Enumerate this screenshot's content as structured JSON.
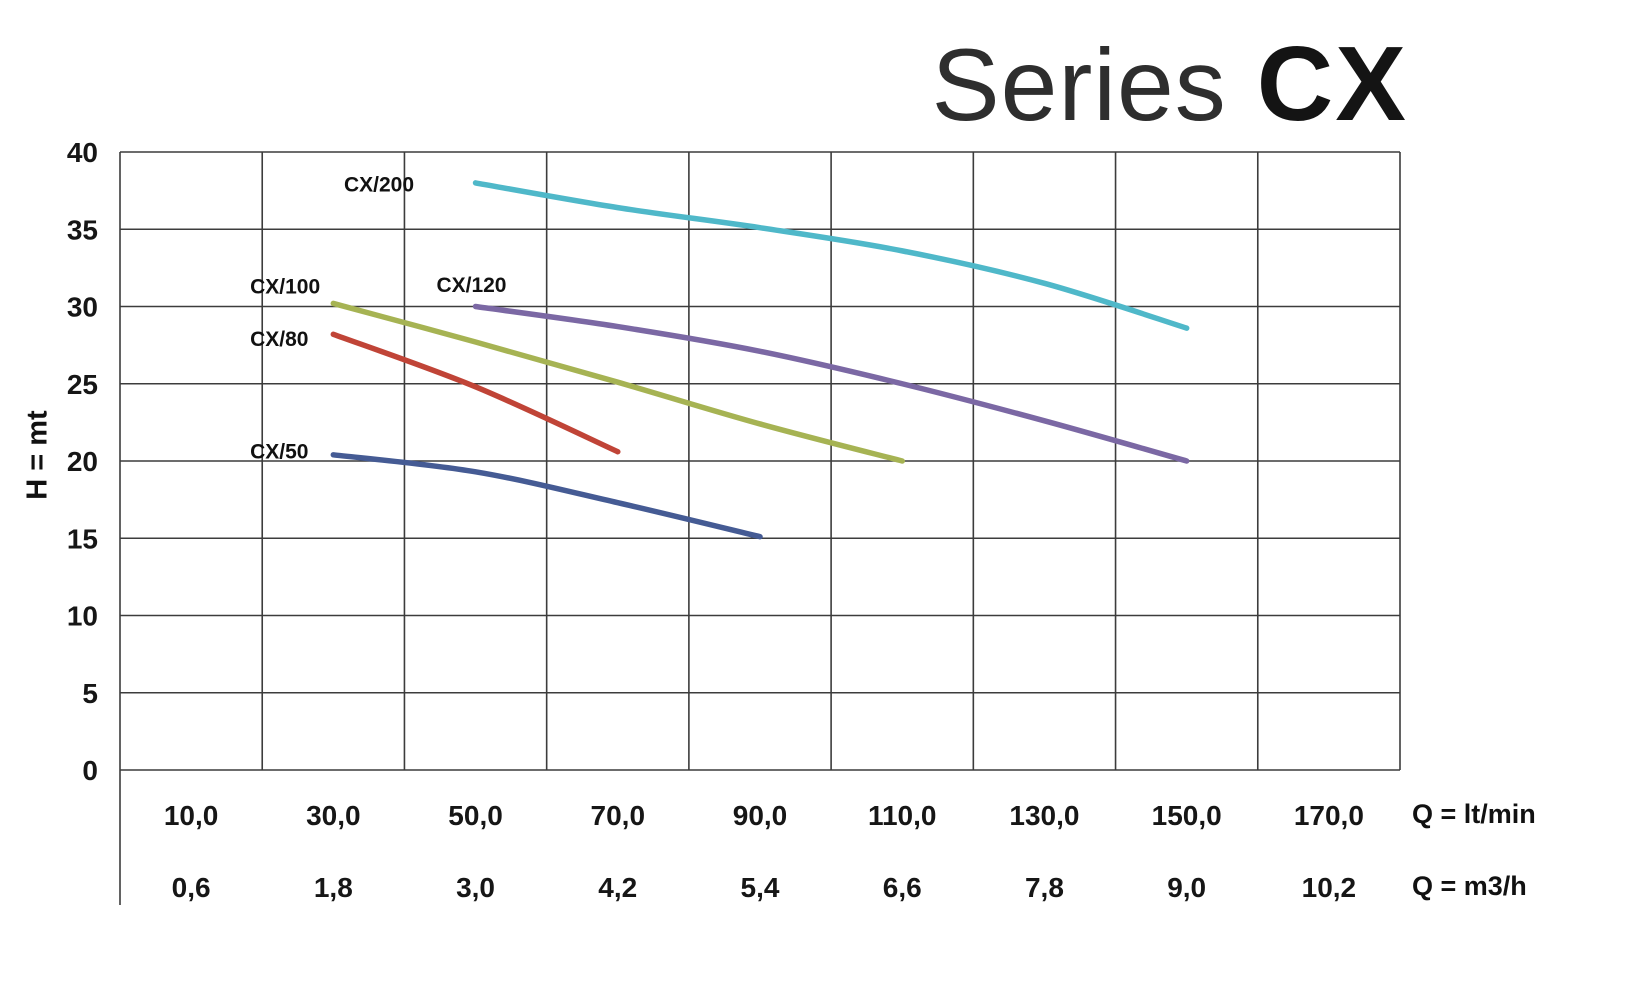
{
  "header": {
    "series_word": "Series",
    "model_word": "CX"
  },
  "chart_data": {
    "type": "line",
    "title": "Series CX",
    "ylabel": "H = mt",
    "xlabel_primary": "Q = lt/min",
    "xlabel_secondary": "Q = m3/h",
    "xlim": [
      0,
      180
    ],
    "ylim": [
      0,
      40
    ],
    "x_grid_step": 20,
    "y_grid_step": 5,
    "grid": true,
    "legend": "inline-labels",
    "y_ticks": [
      40,
      35,
      30,
      25,
      20,
      15,
      10,
      5,
      0
    ],
    "x_ticks_ltmin": [
      "10,0",
      "30,0",
      "50,0",
      "70,0",
      "90,0",
      "110,0",
      "130,0",
      "150,0",
      "170,0"
    ],
    "x_ticks_m3h": [
      "0,6",
      "1,8",
      "3,0",
      "4,2",
      "5,4",
      "6,6",
      "7,8",
      "9,0",
      "10,2"
    ],
    "series": [
      {
        "name": "CX/200",
        "color": "#4fb8c9",
        "x": [
          50,
          70,
          90,
          110,
          130,
          150
        ],
        "y": [
          38.0,
          36.4,
          35.1,
          33.6,
          31.5,
          28.6
        ],
        "label_pos": [
          31.5,
          37.9
        ]
      },
      {
        "name": "CX/120",
        "color": "#7b68a4",
        "x": [
          50,
          70,
          90,
          110,
          130,
          150
        ],
        "y": [
          30.0,
          28.7,
          27.1,
          25.0,
          22.6,
          20.0
        ],
        "label_pos": [
          44.5,
          31.4
        ]
      },
      {
        "name": "CX/100",
        "color": "#a6b353",
        "x": [
          30,
          50,
          70,
          90,
          110
        ],
        "y": [
          30.2,
          27.7,
          25.1,
          22.4,
          20.0
        ],
        "label_pos": [
          18.3,
          31.3
        ]
      },
      {
        "name": "CX/80",
        "color": "#c04437",
        "x": [
          30,
          50,
          70
        ],
        "y": [
          28.2,
          24.8,
          20.6
        ],
        "label_pos": [
          18.3,
          27.9
        ]
      },
      {
        "name": "CX/50",
        "color": "#455b94",
        "x": [
          30,
          50,
          70,
          90
        ],
        "y": [
          20.4,
          19.3,
          17.3,
          15.1
        ],
        "label_pos": [
          18.3,
          20.6
        ]
      }
    ]
  }
}
